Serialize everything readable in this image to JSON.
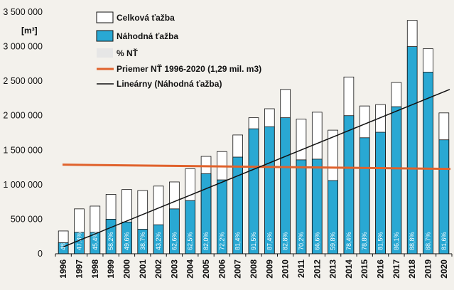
{
  "chart_data": {
    "type": "bar",
    "unit_label": "[m³]",
    "categories": [
      "1996",
      "1997",
      "1998",
      "1999",
      "2000",
      "2001",
      "2002",
      "2003",
      "2004",
      "2005",
      "2006",
      "2007",
      "2008",
      "2009",
      "2010",
      "2011",
      "2012",
      "2013",
      "2014",
      "2015",
      "2016",
      "2017",
      "2018",
      "2019",
      "2020"
    ],
    "series": [
      {
        "name": "Celková ťažba",
        "color": "#ffffff",
        "values": [
          330000,
          650000,
          690000,
          860000,
          930000,
          915000,
          980000,
          1040000,
          1230000,
          1410000,
          1480000,
          1720000,
          1970000,
          2100000,
          2380000,
          1950000,
          2050000,
          1790000,
          2560000,
          2140000,
          2160000,
          2480000,
          3380000,
          2970000,
          2040000
        ]
      },
      {
        "name": "Náhodná ťažba",
        "color": "#29a8d3",
        "values": [
          160000,
          310000,
          310000,
          500000,
          460000,
          355000,
          420000,
          650000,
          770000,
          1160000,
          1070000,
          1400000,
          1810000,
          1840000,
          1970000,
          1360000,
          1370000,
          1060000,
          2000000,
          1680000,
          1760000,
          2130000,
          3000000,
          2630000,
          1650000
        ]
      }
    ],
    "percent_series": {
      "name": "% NŤ",
      "color": "#e6e6e6",
      "labels": [
        "48,4%",
        "47,8%",
        "45,4%",
        "58,2%",
        "49,6%",
        "38,7%",
        "43,2%",
        "62,6%",
        "62,5%",
        "82,0%",
        "72,2%",
        "81,4%",
        "91,5%",
        "87,4%",
        "82,8%",
        "70,2%",
        "66,6%",
        "59,8%",
        "78,4%",
        "78,8%",
        "81,5%",
        "86,1%",
        "88,8%",
        "88,7%",
        "81,6%"
      ]
    },
    "average_line": {
      "name": "Priemer NŤ 1996-2020 (1,29 mil. m3)",
      "value": 1290000,
      "color": "#e0622c"
    },
    "trend_line": {
      "name": "Lineárny (Náhodná ťažba)",
      "start": 100000,
      "end": 2380000,
      "color": "#111111"
    },
    "y_ticks": [
      0,
      500000,
      1000000,
      1500000,
      2000000,
      2500000,
      3000000,
      3500000
    ],
    "y_tick_labels": [
      "0",
      "500 000",
      "1 000 000",
      "1 500 000",
      "2 000 000",
      "2 500 000",
      "3 000 000",
      "3 500 000"
    ],
    "ylim": [
      0,
      3500000
    ],
    "legend_position": "top-left",
    "grid": false
  }
}
